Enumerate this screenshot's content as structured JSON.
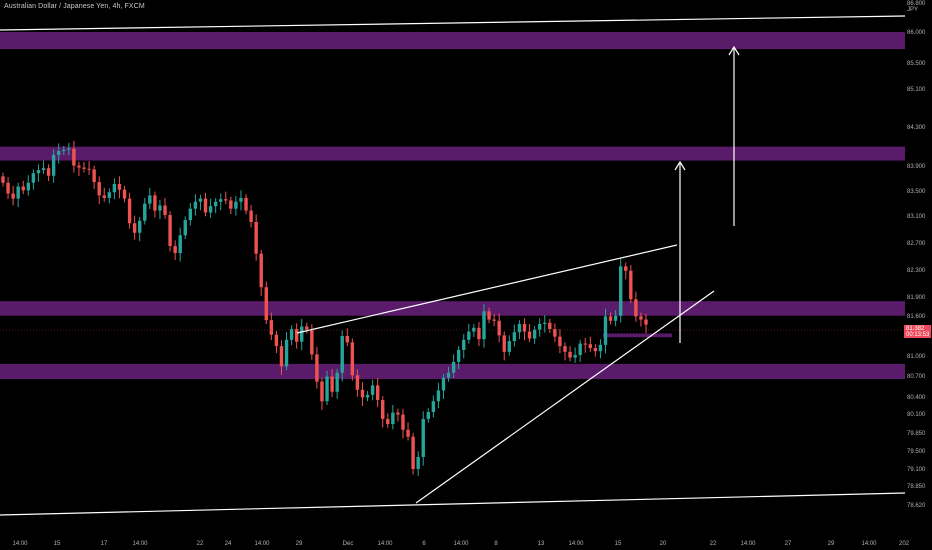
{
  "chart_data": {
    "type": "candlestick",
    "title": "Australian Dollar / Japanese Yen, 4h, FXCM",
    "currency": "JPY",
    "price_scale": {
      "ticks": [
        "86.800",
        "86.000",
        "85.500",
        "85.100",
        "84.300",
        "83.900",
        "83.500",
        "83.100",
        "82.700",
        "82.300",
        "81.900",
        "81.600",
        "81.000",
        "80.700",
        "80.400",
        "80.100",
        "79.850",
        "79.500",
        "79.100",
        "78.850",
        "78.620"
      ]
    },
    "time_scale": {
      "ticks": [
        "14:00",
        "15",
        "17",
        "14:00",
        "22",
        "24",
        "14:00",
        "29",
        "Dec",
        "14:00",
        "6",
        "14:00",
        "8",
        "13",
        "14:00",
        "15",
        "20",
        "22",
        "14:00",
        "27",
        "29",
        "14:00",
        "202"
      ]
    },
    "last_price": {
      "value": "81.382",
      "countdown": "00:13:53"
    },
    "zones": [
      {
        "label": "zone-86",
        "from": 85.73,
        "to": 86.0
      },
      {
        "label": "zone-84",
        "from": 83.97,
        "to": 84.19
      },
      {
        "label": "zone-81.8",
        "from": 81.52,
        "to": 81.75
      },
      {
        "label": "zone-80.7",
        "from": 80.52,
        "to": 80.76
      },
      {
        "label": "small-zone",
        "from": 81.18,
        "to": 81.24
      }
    ],
    "candles_close": [
      83.62,
      83.45,
      83.37,
      83.56,
      83.5,
      83.62,
      83.77,
      83.82,
      83.85,
      83.73,
      84.06,
      84.12,
      84.14,
      84.16,
      83.89,
      83.86,
      83.84,
      83.83,
      83.63,
      83.42,
      83.38,
      83.47,
      83.6,
      83.51,
      83.37,
      82.98,
      82.83,
      83.02,
      83.29,
      83.42,
      83.18,
      83.26,
      83.11,
      82.62,
      82.51,
      82.79,
      83.03,
      83.21,
      83.32,
      83.37,
      83.15,
      83.25,
      83.32,
      83.36,
      83.34,
      83.21,
      83.32,
      83.38,
      83.18,
      83.0,
      82.5,
      81.97,
      81.45,
      81.22,
      81.04,
      80.72,
      81.14,
      81.31,
      81.11,
      81.35,
      81.3,
      80.91,
      80.48,
      80.17,
      80.56,
      80.32,
      80.62,
      81.2,
      81.1,
      80.58,
      80.35,
      80.23,
      80.27,
      80.42,
      80.19,
      79.89,
      79.81,
      79.99,
      79.96,
      79.72,
      79.61,
      79.1,
      79.29,
      79.89,
      80.0,
      80.17,
      80.34,
      80.54,
      80.62,
      80.79,
      80.98,
      81.14,
      81.27,
      81.33,
      81.15,
      81.59,
      81.46,
      81.44,
      81.21,
      80.95,
      81.12,
      81.26,
      81.39,
      81.27,
      81.16,
      81.3,
      81.39,
      81.41,
      81.31,
      81.19,
      81.04,
      80.95,
      80.86,
      80.9,
      81.08,
      81.07,
      81.01,
      80.96,
      81.06,
      81.51,
      81.44,
      81.52,
      82.3,
      82.23,
      81.78,
      81.51,
      81.46,
      81.38
    ],
    "lines": [
      {
        "name": "top-channel",
        "from": [
          0,
          86.95
        ],
        "to": [
          905,
          87.2
        ]
      },
      {
        "name": "bottom-channel",
        "from": [
          0,
          78.72
        ],
        "to": [
          905,
          78.95
        ]
      }
    ]
  }
}
